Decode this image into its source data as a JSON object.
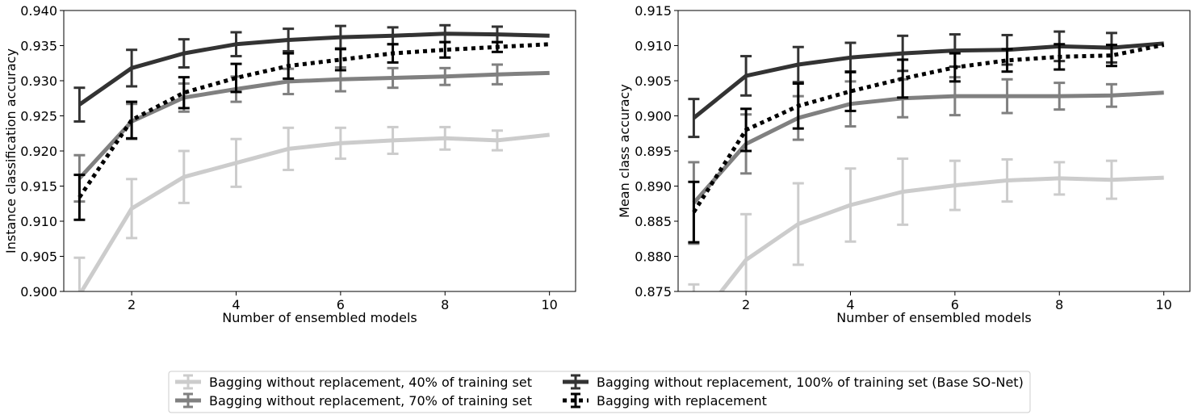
{
  "chart_data": [
    {
      "type": "line",
      "title": "",
      "xlabel": "Number of ensembled models",
      "ylabel": "Instance classification accuracy",
      "xlim": [
        0.7,
        10.5
      ],
      "ylim": [
        0.9,
        0.94
      ],
      "xticks": [
        2,
        4,
        6,
        8,
        10
      ],
      "yticks": [
        0.9,
        0.905,
        0.91,
        0.915,
        0.92,
        0.925,
        0.93,
        0.935,
        0.94
      ],
      "ytick_labels": [
        "0.900",
        "0.905",
        "0.910",
        "0.915",
        "0.920",
        "0.925",
        "0.930",
        "0.935",
        "0.940"
      ],
      "grid": false,
      "series": [
        {
          "name": "Bagging without replacement, 40% of training set",
          "x": [
            1,
            2,
            3,
            4,
            5,
            6,
            7,
            8,
            9,
            10
          ],
          "y": [
            0.8995,
            0.9118,
            0.9163,
            0.9183,
            0.9203,
            0.9211,
            0.9215,
            0.9218,
            0.9215,
            0.9223
          ],
          "err": [
            0.0053,
            0.0042,
            0.0037,
            0.0034,
            0.003,
            0.0022,
            0.0019,
            0.0016,
            0.0014,
            0
          ]
        },
        {
          "name": "Bagging without replacement, 70% of training set",
          "x": [
            1,
            2,
            3,
            4,
            5,
            6,
            7,
            8,
            9,
            10
          ],
          "y": [
            0.9161,
            0.9242,
            0.9276,
            0.9288,
            0.9299,
            0.9302,
            0.9304,
            0.9306,
            0.9309,
            0.9311
          ],
          "err": [
            0.0033,
            0.0025,
            0.002,
            0.0018,
            0.0018,
            0.0017,
            0.0014,
            0.0012,
            0.0014,
            0
          ]
        },
        {
          "name": "Bagging without replacement, 100% of training set (Base SO-Net)",
          "x": [
            1,
            2,
            3,
            4,
            5,
            6,
            7,
            8,
            9,
            10
          ],
          "y": [
            0.9266,
            0.9318,
            0.9339,
            0.9352,
            0.9358,
            0.9362,
            0.9364,
            0.9367,
            0.9366,
            0.9364
          ],
          "err": [
            0.0024,
            0.0026,
            0.002,
            0.0017,
            0.0016,
            0.0016,
            0.0012,
            0.0012,
            0.0011,
            0
          ]
        },
        {
          "name": "Bagging with replacement",
          "x": [
            1,
            2,
            3,
            4,
            5,
            6,
            7,
            8,
            9,
            10
          ],
          "y": [
            0.9134,
            0.9244,
            0.9283,
            0.9304,
            0.9321,
            0.933,
            0.9339,
            0.9344,
            0.9348,
            0.9352
          ],
          "err": [
            0.0032,
            0.0026,
            0.0022,
            0.002,
            0.0018,
            0.0015,
            0.0013,
            0.0011,
            0.0007,
            0
          ]
        }
      ]
    },
    {
      "type": "line",
      "title": "",
      "xlabel": "Number of ensembled models",
      "ylabel": "Mean class accuracy",
      "xlim": [
        0.7,
        10.5
      ],
      "ylim": [
        0.875,
        0.915
      ],
      "xticks": [
        2,
        4,
        6,
        8,
        10
      ],
      "yticks": [
        0.875,
        0.88,
        0.885,
        0.89,
        0.895,
        0.9,
        0.905,
        0.91,
        0.915
      ],
      "ytick_labels": [
        "0.875",
        "0.880",
        "0.885",
        "0.890",
        "0.895",
        "0.900",
        "0.905",
        "0.910",
        "0.915"
      ],
      "grid": false,
      "series": [
        {
          "name": "Bagging without replacement, 40% of training set",
          "x": [
            1,
            2,
            3,
            4,
            5,
            6,
            7,
            8,
            9,
            10
          ],
          "y": [
            0.87,
            0.8795,
            0.8846,
            0.8873,
            0.8892,
            0.8901,
            0.8908,
            0.8911,
            0.8909,
            0.8912
          ],
          "err": [
            0.006,
            0.0065,
            0.0058,
            0.0052,
            0.0047,
            0.0035,
            0.003,
            0.0023,
            0.0027,
            0
          ]
        },
        {
          "name": "Bagging without replacement, 70% of training set",
          "x": [
            1,
            2,
            3,
            4,
            5,
            6,
            7,
            8,
            9,
            10
          ],
          "y": [
            0.8876,
            0.896,
            0.8997,
            0.9017,
            0.9025,
            0.9028,
            0.9028,
            0.9028,
            0.9029,
            0.9033
          ],
          "err": [
            0.0058,
            0.0042,
            0.0031,
            0.0032,
            0.0027,
            0.0027,
            0.0024,
            0.0019,
            0.0016,
            0
          ]
        },
        {
          "name": "Bagging without replacement, 100% of training set (Base SO-Net)",
          "x": [
            1,
            2,
            3,
            4,
            5,
            6,
            7,
            8,
            9,
            10
          ],
          "y": [
            0.8997,
            0.9057,
            0.9073,
            0.9083,
            0.9089,
            0.9093,
            0.9094,
            0.9099,
            0.9097,
            0.9103
          ],
          "err": [
            0.0027,
            0.0028,
            0.0025,
            0.0021,
            0.0025,
            0.0023,
            0.0021,
            0.0021,
            0.0021,
            0
          ]
        },
        {
          "name": "Bagging with replacement",
          "x": [
            1,
            2,
            3,
            4,
            5,
            6,
            7,
            8,
            9,
            10
          ],
          "y": [
            0.8863,
            0.898,
            0.9014,
            0.9035,
            0.9053,
            0.9069,
            0.9079,
            0.9084,
            0.9086,
            0.9101
          ],
          "err": [
            0.0043,
            0.003,
            0.0032,
            0.0028,
            0.0027,
            0.002,
            0.0016,
            0.0018,
            0.0015,
            0
          ]
        }
      ]
    }
  ],
  "series_styles": [
    {
      "color": "#cccccc",
      "dash": "none"
    },
    {
      "color": "#808080",
      "dash": "none"
    },
    {
      "color": "#333333",
      "dash": "none"
    },
    {
      "color": "#000000",
      "dash": "dotted"
    }
  ],
  "legend": {
    "placement": "bottom-center",
    "items": [
      "Bagging without replacement, 40% of training set",
      "Bagging without replacement, 70% of training set",
      "Bagging without replacement, 100% of training set (Base SO-Net)",
      "Bagging with replacement"
    ]
  }
}
